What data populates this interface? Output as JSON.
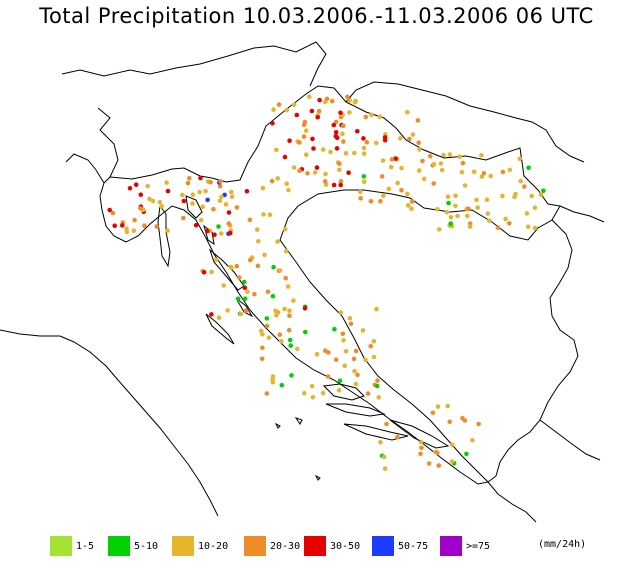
{
  "title": "Total Precipitation 10.03.2006.-11.03.2006 06 UTC",
  "unit": "(mm/24h)",
  "legend": [
    {
      "label": "1-5",
      "color": "#a6e234"
    },
    {
      "label": "5-10",
      "color": "#00d200"
    },
    {
      "label": "10-20",
      "color": "#e6b42d"
    },
    {
      "label": "20-30",
      "color": "#f08c28"
    },
    {
      "label": "30-50",
      "color": "#e60000"
    },
    {
      "label": "50-75",
      "color": "#1e3cff"
    },
    {
      "label": ">=75",
      "color": "#a000c8"
    }
  ]
}
